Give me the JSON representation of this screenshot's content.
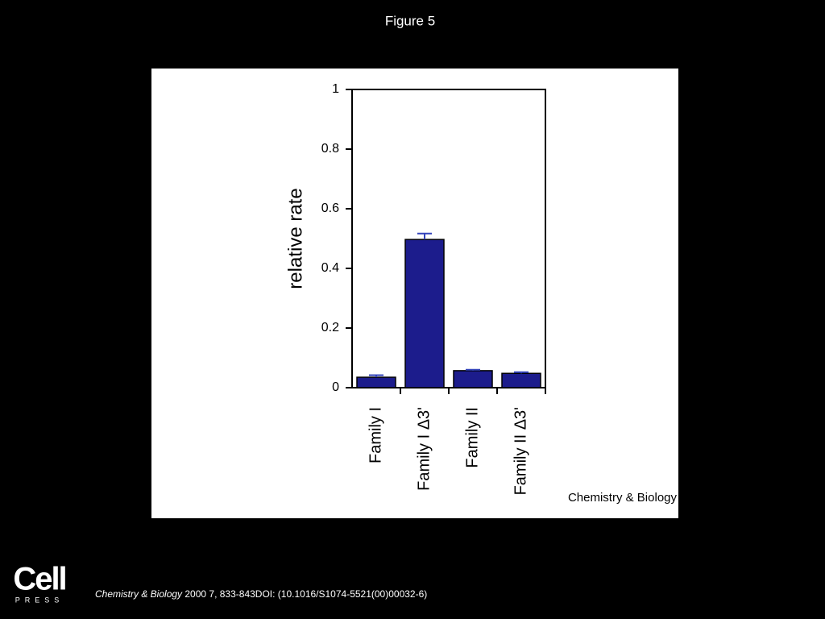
{
  "header": {
    "title": "Figure 5"
  },
  "chart_data": {
    "type": "bar",
    "ylabel": "relative rate",
    "categories": [
      "Family I",
      "Family I Δ3'",
      "Family II",
      "Family II Δ3'"
    ],
    "values": [
      0.035,
      0.497,
      0.057,
      0.048
    ],
    "errors": [
      0.007,
      0.02,
      0.003,
      0.004
    ],
    "color": "#1c1c8c",
    "error_color": "#3344bb",
    "ylim": [
      0,
      1
    ],
    "yticks": [
      0,
      0.2,
      0.4,
      0.6,
      0.8,
      1
    ],
    "watermark": "Chemistry & Biology"
  },
  "footer": {
    "logo": {
      "name": "Cell",
      "sub": "PRESS"
    },
    "citation": {
      "journal": "Chemistry & Biology",
      "text": " 2000 7, 833-843DOI: (10.1016/S1074-5521(00)00032-6)"
    }
  }
}
